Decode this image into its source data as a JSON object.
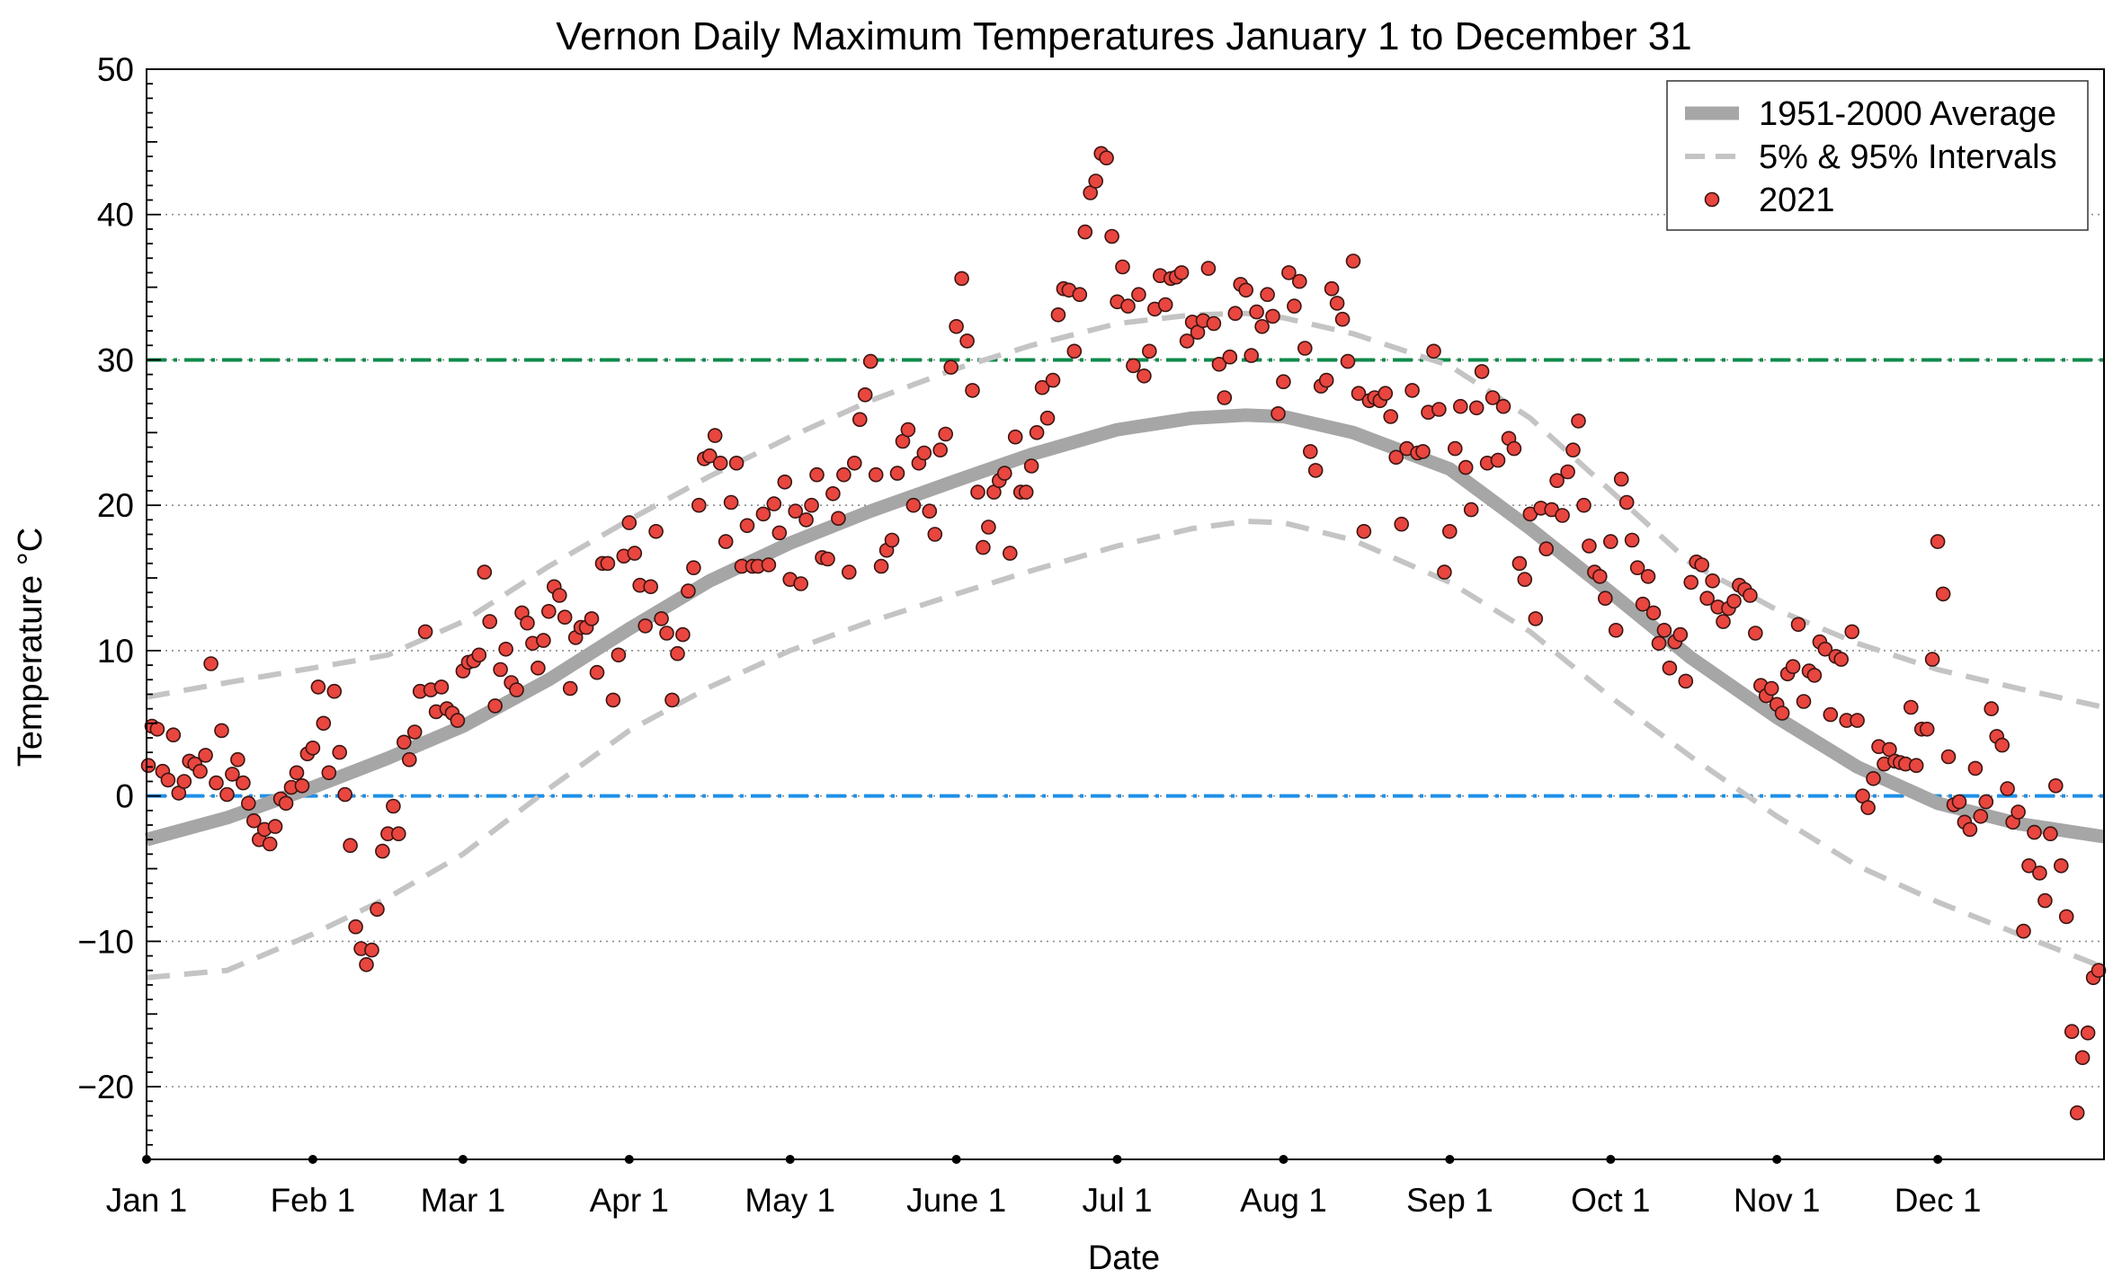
{
  "chart_data": {
    "type": "scatter",
    "title": "Vernon Daily Maximum Temperatures January 1 to December 31",
    "xlabel": "Date",
    "ylabel": "Temperature °C",
    "xlim": [
      0,
      365
    ],
    "ylim": [
      -25,
      50
    ],
    "x_ticks": [
      {
        "label": "Jan 1",
        "day": 0
      },
      {
        "label": "Feb 1",
        "day": 31
      },
      {
        "label": "Mar 1",
        "day": 59
      },
      {
        "label": "Apr 1",
        "day": 90
      },
      {
        "label": "May 1",
        "day": 120
      },
      {
        "label": "June 1",
        "day": 151
      },
      {
        "label": "Jul 1",
        "day": 181
      },
      {
        "label": "Aug 1",
        "day": 212
      },
      {
        "label": "Sep 1",
        "day": 243
      },
      {
        "label": "Oct 1",
        "day": 273
      },
      {
        "label": "Nov 1",
        "day": 304
      },
      {
        "label": "Dec 1",
        "day": 334
      }
    ],
    "y_ticks": [
      -20,
      -10,
      0,
      10,
      20,
      30,
      40,
      50
    ],
    "grid": "horizontal dotted",
    "legend_position": "top-right",
    "reference_lines": [
      {
        "y": 30,
        "color": "#0e8a4a",
        "style": "dash-dot"
      },
      {
        "y": 0,
        "color": "#1e90e8",
        "style": "dash-dot"
      }
    ],
    "series": [
      {
        "name": "1951-2000 Average",
        "kind": "line",
        "color": "#a6a6a6",
        "x": [
          0,
          15,
          31,
          45,
          59,
          75,
          90,
          105,
          120,
          135,
          151,
          165,
          181,
          195,
          205,
          212,
          225,
          243,
          258,
          273,
          288,
          304,
          319,
          334,
          349,
          365
        ],
        "y": [
          -3.0,
          -1.5,
          0.6,
          2.6,
          4.8,
          8.0,
          11.5,
          14.8,
          17.4,
          19.6,
          21.7,
          23.5,
          25.2,
          26.0,
          26.2,
          26.1,
          25.0,
          22.5,
          18.4,
          14.0,
          9.5,
          5.4,
          2.0,
          -0.5,
          -1.9,
          -2.8
        ]
      },
      {
        "name": "5% & 95% Intervals",
        "kind": "line",
        "color": "#c4c4c4",
        "x": [
          0,
          15,
          31,
          45,
          59,
          75,
          90,
          105,
          120,
          135,
          151,
          165,
          181,
          195,
          205,
          212,
          225,
          243,
          258,
          273,
          288,
          304,
          319,
          334,
          349,
          365
        ],
        "y": [
          6.8,
          7.8,
          8.8,
          9.7,
          12.0,
          15.8,
          19.0,
          22.0,
          24.7,
          27.2,
          29.4,
          31.0,
          32.5,
          33.1,
          33.2,
          32.9,
          31.8,
          29.6,
          26.0,
          21.0,
          16.0,
          12.8,
          10.5,
          8.7,
          7.4,
          6.1
        ]
      },
      {
        "name": "",
        "kind": "line",
        "color": "#c4c4c4",
        "x": [
          0,
          15,
          31,
          45,
          59,
          75,
          90,
          105,
          120,
          135,
          151,
          165,
          181,
          195,
          205,
          212,
          225,
          243,
          258,
          273,
          288,
          304,
          319,
          334,
          349,
          365
        ],
        "y": [
          -12.5,
          -12.0,
          -9.5,
          -7.0,
          -4.0,
          0.5,
          4.5,
          7.5,
          10.0,
          12.0,
          13.9,
          15.5,
          17.2,
          18.4,
          18.9,
          18.8,
          17.6,
          14.7,
          11.3,
          6.8,
          2.7,
          -1.4,
          -4.8,
          -7.3,
          -9.5,
          -11.8
        ]
      },
      {
        "name": "2021",
        "kind": "scatter",
        "color": "#e8463f",
        "x": [
          0,
          1,
          2,
          3,
          4,
          5,
          6,
          7,
          8,
          9,
          10,
          11,
          12,
          13,
          14,
          15,
          16,
          17,
          18,
          19,
          20,
          21,
          22,
          23,
          24,
          25,
          26,
          27,
          28,
          29,
          30,
          31,
          32,
          33,
          34,
          35,
          36,
          37,
          38,
          39,
          40,
          41,
          42,
          43,
          44,
          45,
          46,
          47,
          48,
          49,
          50,
          51,
          52,
          53,
          54,
          55,
          56,
          57,
          58,
          59,
          60,
          61,
          62,
          63,
          64,
          65,
          66,
          67,
          68,
          69,
          70,
          71,
          72,
          73,
          74,
          75,
          76,
          77,
          78,
          79,
          80,
          81,
          82,
          83,
          84,
          85,
          86,
          87,
          88,
          89,
          90,
          91,
          92,
          93,
          94,
          95,
          96,
          97,
          98,
          99,
          100,
          101,
          102,
          103,
          104,
          105,
          106,
          107,
          108,
          109,
          110,
          111,
          112,
          113,
          114,
          115,
          116,
          117,
          118,
          119,
          120,
          121,
          122,
          123,
          124,
          125,
          126,
          127,
          128,
          129,
          130,
          131,
          132,
          133,
          134,
          135,
          136,
          137,
          138,
          139,
          140,
          141,
          142,
          143,
          144,
          145,
          146,
          147,
          148,
          149,
          150,
          151,
          152,
          153,
          154,
          155,
          156,
          157,
          158,
          159,
          160,
          161,
          162,
          163,
          164,
          165,
          166,
          167,
          168,
          169,
          170,
          171,
          172,
          173,
          174,
          175,
          176,
          177,
          178,
          179,
          180,
          181,
          182,
          183,
          184,
          185,
          186,
          187,
          188,
          189,
          190,
          191,
          192,
          193,
          194,
          195,
          196,
          197,
          198,
          199,
          200,
          201,
          202,
          203,
          204,
          205,
          206,
          207,
          208,
          209,
          210,
          211,
          212,
          213,
          214,
          215,
          216,
          217,
          218,
          219,
          220,
          221,
          222,
          223,
          224,
          225,
          226,
          227,
          228,
          229,
          230,
          231,
          232,
          233,
          234,
          235,
          236,
          237,
          238,
          239,
          240,
          241,
          242,
          243,
          244,
          245,
          246,
          247,
          248,
          249,
          250,
          251,
          252,
          253,
          254,
          255,
          256,
          257,
          258,
          259,
          260,
          261,
          262,
          263,
          264,
          265,
          266,
          267,
          268,
          269,
          270,
          271,
          272,
          273,
          274,
          275,
          276,
          277,
          278,
          279,
          280,
          281,
          282,
          283,
          284,
          285,
          286,
          287,
          288,
          289,
          290,
          291,
          292,
          293,
          294,
          295,
          296,
          297,
          298,
          299,
          300,
          301,
          302,
          303,
          304,
          305,
          306,
          307,
          308,
          309,
          310,
          311,
          312,
          313,
          314,
          315,
          316,
          317,
          318,
          319,
          320,
          321,
          322,
          323,
          324,
          325,
          326,
          327,
          328,
          329,
          330,
          331,
          332,
          333,
          334,
          335,
          336,
          337,
          338,
          339,
          340,
          341,
          342,
          343,
          344,
          345,
          346,
          347,
          348,
          349,
          350,
          351,
          352,
          353,
          354,
          355,
          356,
          357,
          358,
          359,
          360,
          361,
          362,
          363,
          364
        ],
        "y": [
          2.1,
          4.8,
          4.6,
          1.7,
          1.1,
          4.2,
          0.2,
          1.0,
          2.4,
          2.2,
          1.7,
          2.8,
          9.1,
          0.9,
          4.5,
          0.1,
          1.5,
          2.5,
          0.9,
          -0.5,
          -1.7,
          -3.0,
          -2.3,
          -3.3,
          -2.1,
          -0.2,
          -0.5,
          0.6,
          1.6,
          0.7,
          2.9,
          3.3,
          7.5,
          5.0,
          1.6,
          7.2,
          3.0,
          0.1,
          -3.4,
          -9.0,
          -10.5,
          -11.6,
          -10.6,
          -7.8,
          -3.8,
          -2.6,
          -0.7,
          -2.6,
          3.7,
          2.5,
          4.4,
          7.2,
          11.3,
          7.3,
          5.8,
          7.5,
          6.0,
          5.7,
          5.2,
          8.6,
          9.2,
          9.3,
          9.7,
          15.4,
          12.0,
          6.2,
          8.7,
          10.1,
          7.8,
          7.3,
          12.6,
          11.9,
          10.5,
          8.8,
          10.7,
          12.7,
          14.4,
          13.8,
          12.3,
          7.4,
          10.9,
          11.6,
          11.6,
          12.2,
          8.5,
          16.0,
          16.0,
          6.6,
          9.7,
          16.5,
          18.8,
          16.7,
          14.5,
          11.7,
          14.4,
          18.2,
          12.2,
          11.2,
          6.6,
          9.8,
          11.1,
          14.1,
          15.7,
          20.0,
          23.2,
          23.4,
          24.8,
          22.9,
          17.5,
          20.2,
          22.9,
          15.8,
          18.6,
          15.8,
          15.8,
          19.4,
          15.9,
          20.1,
          18.1,
          21.6,
          14.9,
          19.6,
          14.6,
          19.0,
          20.0,
          22.1,
          16.4,
          16.3,
          20.8,
          19.1,
          22.1,
          15.4,
          22.9,
          25.9,
          27.6,
          29.9,
          22.1,
          15.8,
          16.9,
          17.6,
          22.2,
          24.4,
          25.2,
          20.0,
          22.9,
          23.6,
          19.6,
          18.0,
          23.8,
          24.9,
          29.5,
          32.3,
          35.6,
          31.3,
          27.9,
          20.9,
          17.1,
          18.5,
          20.9,
          21.7,
          22.2,
          16.7,
          24.7,
          20.9,
          20.9,
          22.7,
          25.0,
          28.1,
          26.0,
          28.6,
          33.1,
          34.9,
          34.8,
          30.6,
          34.5,
          38.8,
          41.5,
          42.3,
          44.2,
          43.9,
          38.5,
          34.0,
          36.4,
          33.7,
          29.6,
          34.5,
          28.9,
          30.6,
          33.5,
          35.8,
          33.8,
          35.6,
          35.7,
          36.0,
          31.3,
          32.6,
          31.9,
          32.7,
          36.3,
          32.5,
          29.7,
          27.4,
          30.2,
          33.2,
          35.2,
          34.8,
          30.3,
          33.3,
          32.3,
          34.5,
          33.0,
          26.3,
          28.5,
          36.0,
          33.7,
          35.4,
          30.8,
          23.7,
          22.4,
          28.2,
          28.6,
          34.9,
          33.9,
          32.8,
          29.9,
          36.8,
          27.7,
          18.2,
          27.2,
          27.4,
          27.2,
          27.7,
          26.1,
          23.3,
          18.7,
          23.9,
          27.9,
          23.6,
          23.7,
          26.4,
          30.6,
          26.6,
          15.4,
          18.2,
          23.9,
          26.8,
          22.6,
          19.7,
          26.7,
          29.2,
          22.9,
          27.4,
          23.1,
          26.8,
          24.6,
          23.9,
          16.0,
          14.9,
          19.4,
          12.2,
          19.8,
          17.0,
          19.7,
          21.7,
          19.3,
          22.3,
          23.8,
          25.8,
          20.0,
          17.2,
          15.4,
          15.1,
          13.6,
          17.5,
          11.4,
          21.8,
          20.2,
          17.6,
          15.7,
          13.2,
          15.1,
          12.6,
          10.5,
          11.4,
          8.8,
          10.6,
          11.1,
          7.9,
          14.7,
          16.1,
          15.9,
          13.6,
          14.8,
          13.0,
          12.0,
          12.9,
          13.4,
          14.5,
          14.2,
          13.8,
          11.2,
          7.6,
          6.9,
          7.4,
          6.3,
          5.7,
          8.4,
          8.9,
          11.8,
          6.5,
          8.6,
          8.3,
          10.6,
          10.1,
          5.6,
          9.6,
          9.4,
          5.2,
          11.3,
          5.2,
          0.0,
          -0.8,
          1.2,
          3.4,
          2.2,
          3.2,
          2.4,
          2.3,
          2.2,
          6.1,
          2.1,
          4.6,
          4.6,
          9.4,
          17.5,
          13.9,
          2.7,
          -0.6,
          -0.4,
          -1.8,
          -2.3,
          1.9,
          -1.4,
          -0.4,
          6.0,
          4.1,
          3.5,
          0.5,
          -1.8,
          -1.1,
          -9.3,
          -4.8,
          -2.5,
          -5.3,
          -7.2,
          -2.6,
          0.7,
          -4.8,
          -8.3,
          -16.2,
          -21.8,
          -18.0,
          -16.3,
          -12.5,
          -12.0
        ]
      }
    ]
  }
}
